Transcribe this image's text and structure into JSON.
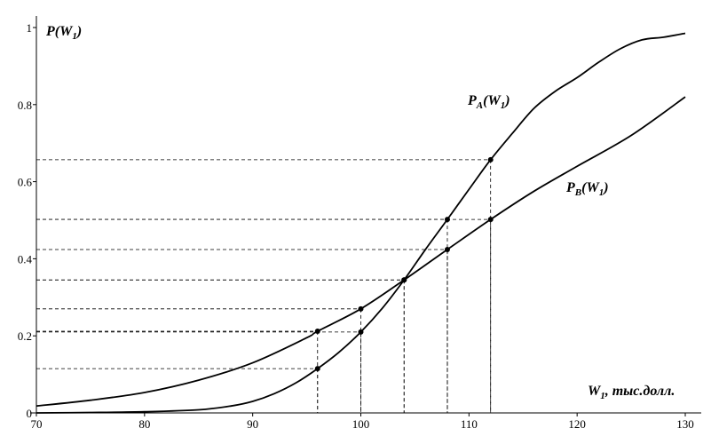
{
  "chart_data": {
    "type": "line",
    "y_label": [
      "P(W",
      "1",
      ")"
    ],
    "x_label": [
      "W",
      "1",
      ", тыс.долл."
    ],
    "xlim": [
      70,
      130
    ],
    "ylim": [
      0,
      1
    ],
    "xticks": [
      70,
      80,
      90,
      100,
      110,
      120,
      130
    ],
    "yticks": [
      0,
      0.2,
      0.4,
      0.6,
      0.8,
      1
    ],
    "color": "#000000",
    "series": [
      {
        "name": [
          "P",
          "A",
          "(W",
          "1",
          ")"
        ],
        "x": [
          70,
          75,
          80,
          85,
          88,
          90,
          92,
          94,
          96,
          98,
          100,
          102,
          104,
          106,
          108,
          110,
          112,
          114,
          116,
          118,
          120,
          122,
          124,
          126,
          128,
          130
        ],
        "values": [
          0,
          0.001,
          0.003,
          0.008,
          0.018,
          0.03,
          0.05,
          0.078,
          0.115,
          0.158,
          0.21,
          0.272,
          0.345,
          0.425,
          0.502,
          0.58,
          0.657,
          0.725,
          0.79,
          0.835,
          0.87,
          0.91,
          0.945,
          0.968,
          0.975,
          0.985
        ],
        "points": {
          "x": [
            96,
            100,
            104,
            108,
            112
          ],
          "values": [
            0.115,
            0.21,
            0.345,
            0.502,
            0.657
          ]
        }
      },
      {
        "name": [
          "P",
          "B",
          "(W",
          "1",
          ")"
        ],
        "x": [
          70,
          75,
          80,
          85,
          90,
          95,
          96,
          100,
          104,
          108,
          112,
          116,
          120,
          125,
          130
        ],
        "values": [
          0.018,
          0.033,
          0.053,
          0.085,
          0.13,
          0.195,
          0.212,
          0.27,
          0.345,
          0.424,
          0.502,
          0.575,
          0.64,
          0.72,
          0.82
        ],
        "points": {
          "x": [
            96,
            100,
            104,
            108,
            112
          ],
          "values": [
            0.212,
            0.27,
            0.345,
            0.424,
            0.502
          ]
        }
      }
    ]
  }
}
